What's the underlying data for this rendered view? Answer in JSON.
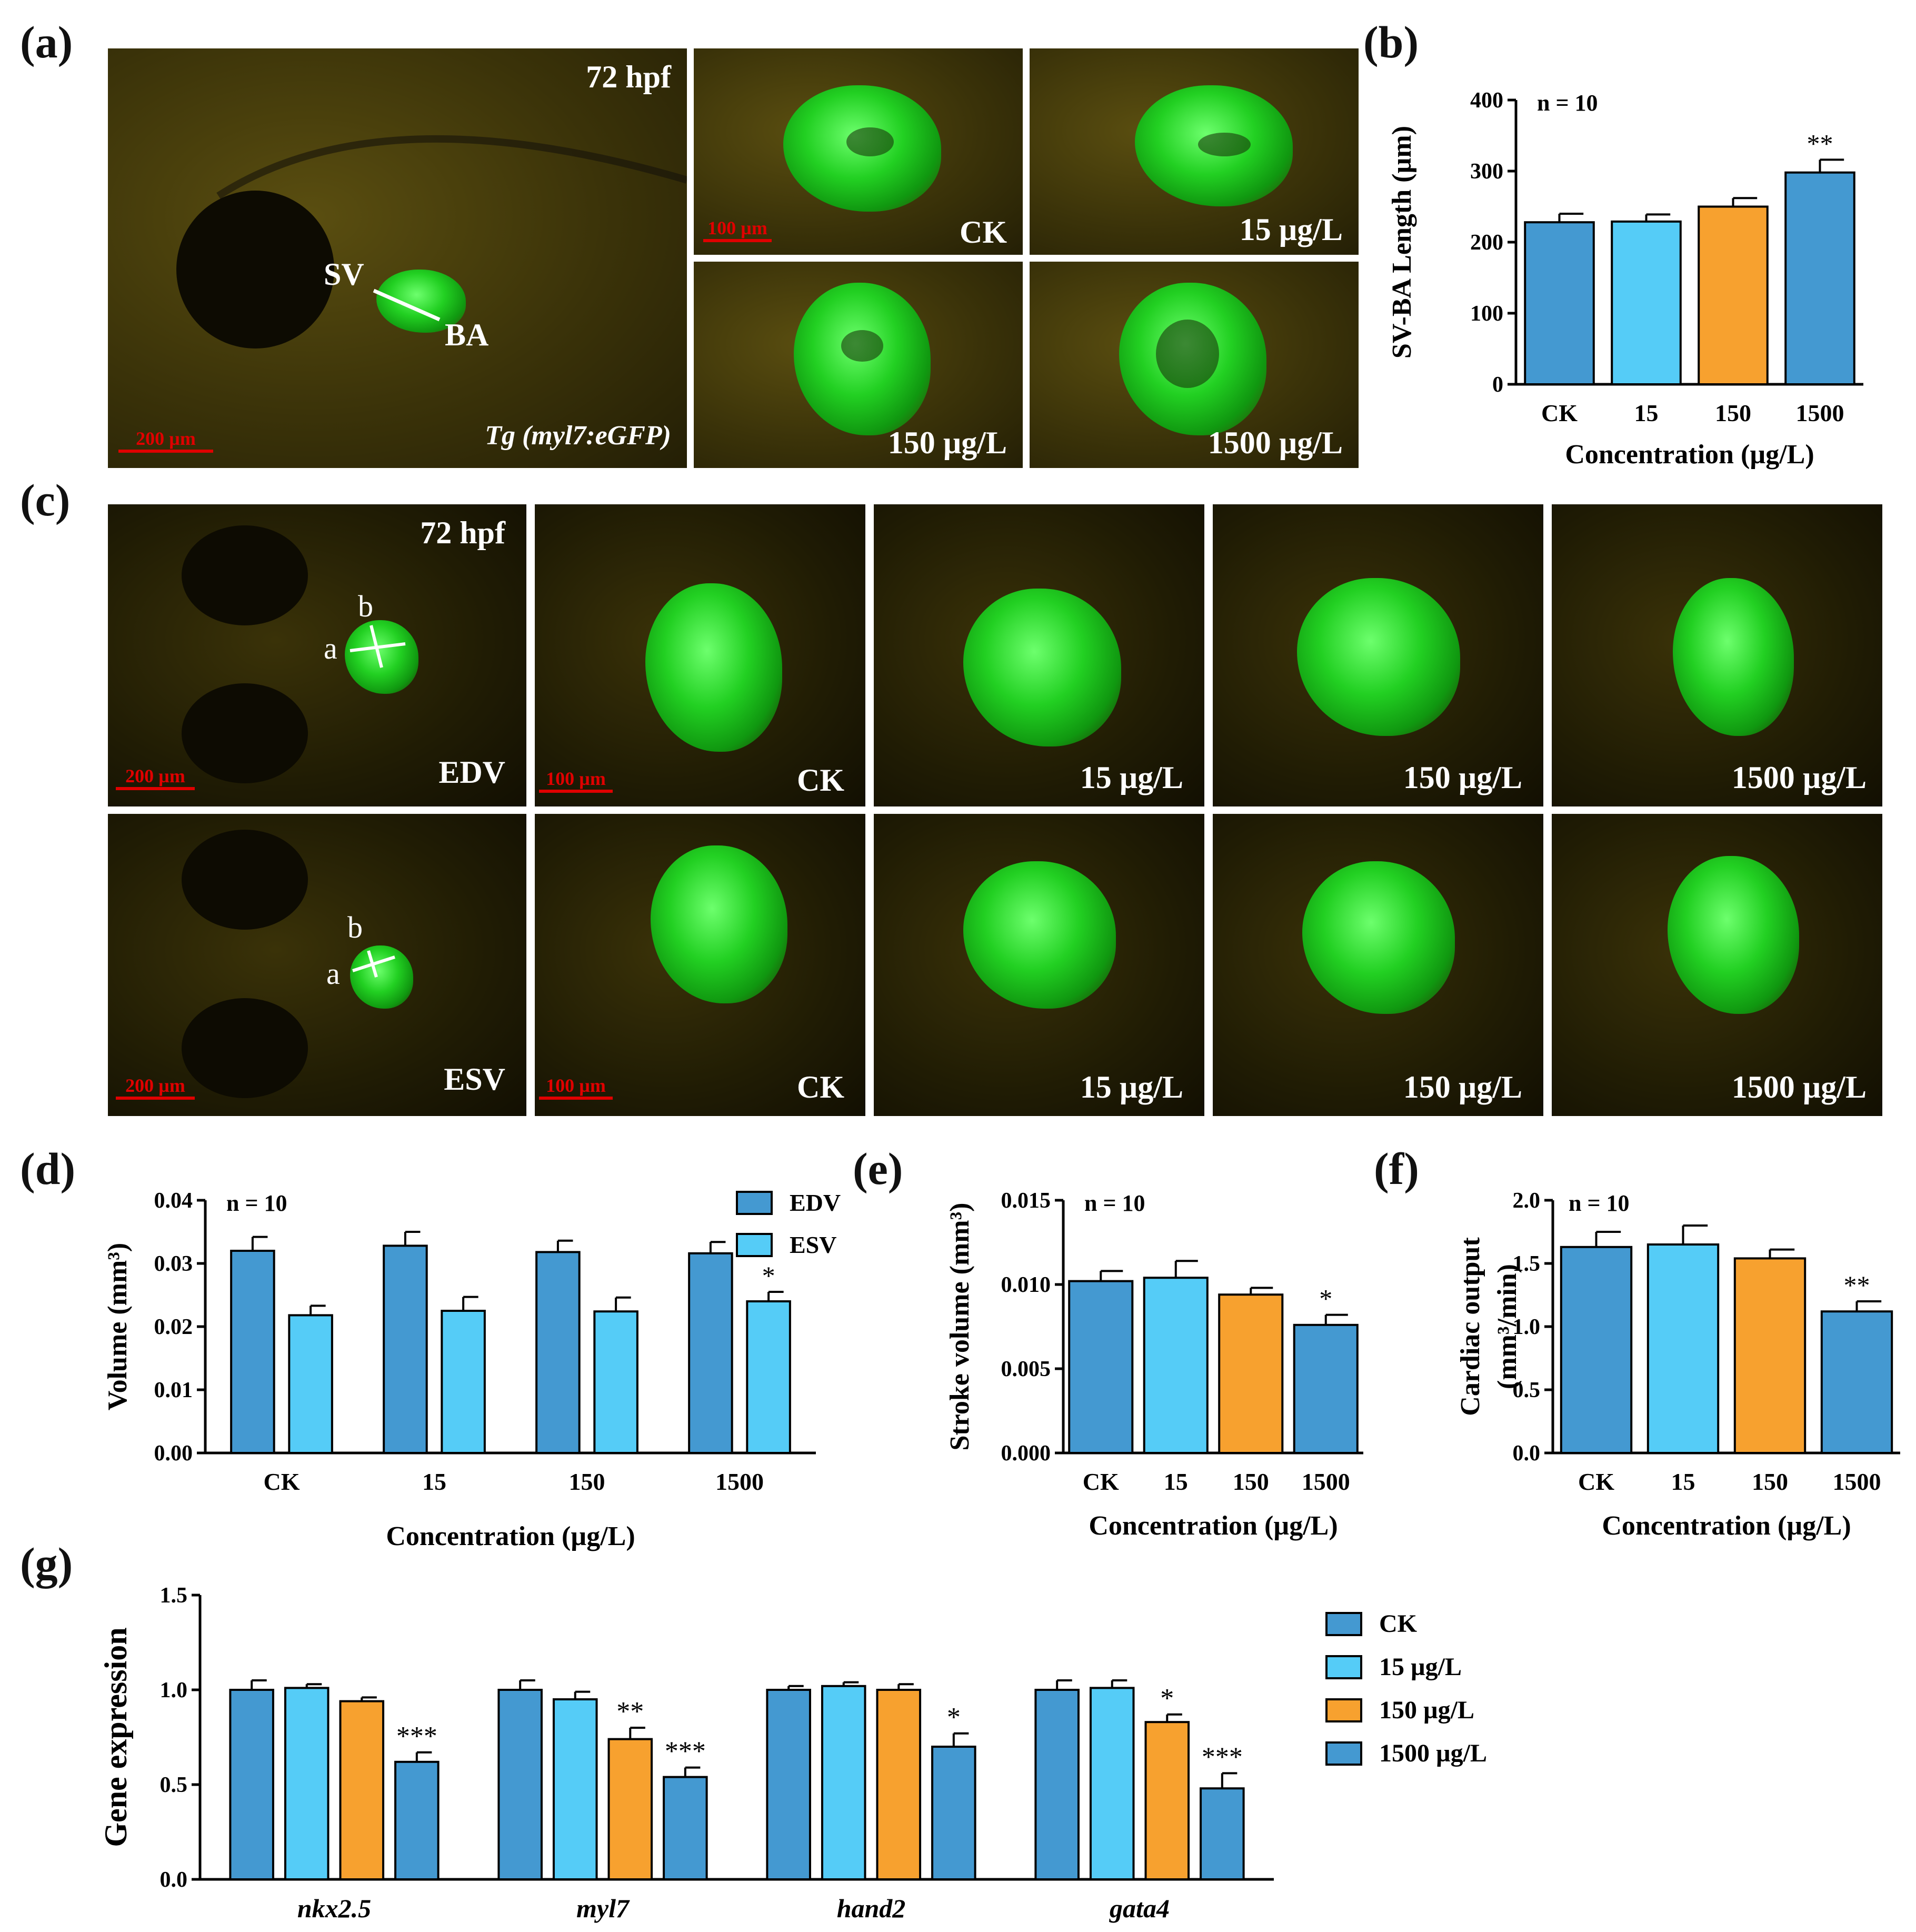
{
  "panel_labels": [
    "(a)",
    "(b)",
    "(c)",
    "(d)",
    "(e)",
    "(f)",
    "(g)"
  ],
  "micrographs": {
    "a": {
      "main_time": "72 hpf",
      "main_caption": "Tg (myl7:eGFP)",
      "sv_label": "SV",
      "ba_label": "BA",
      "main_scale": "200 µm",
      "thumb_scale": "100 µm",
      "thumb_labels": [
        "CK",
        "15 µg/L",
        "150 µg/L",
        "1500 µg/L"
      ]
    },
    "c": {
      "time": "72 hpf",
      "a_label": "a",
      "b_label": "b",
      "edv_label": "EDV",
      "esv_label": "ESV",
      "main_scale": "200 µm",
      "thumb_scale": "100 µm",
      "thumb_labels": [
        "CK",
        "15 µg/L",
        "150 µg/L",
        "1500 µg/L"
      ]
    }
  },
  "chart_data": [
    {
      "id": "b",
      "type": "bar",
      "ylabel": "SV-BA Length (µm)",
      "xlabel": "Concentration (µg/L)",
      "n_text": "n = 10",
      "categories": [
        "CK",
        "15",
        "150",
        "1500"
      ],
      "values": [
        228,
        229,
        250,
        298
      ],
      "errors": [
        12,
        10,
        12,
        18
      ],
      "significance": [
        "",
        "",
        "",
        "**"
      ],
      "ylim": [
        0,
        400
      ],
      "yticks": [
        0,
        100,
        200,
        300,
        400
      ],
      "ytick_labels": [
        "0",
        "100",
        "200",
        "300",
        "400"
      ],
      "colors": [
        "#4499d1",
        "#55ccf7",
        "#f7a12f",
        "#4499d1"
      ]
    },
    {
      "id": "d",
      "type": "bar",
      "ylabel": "Volume (mm³)",
      "xlabel": "Concentration (µg/L)",
      "n_text": "n = 10",
      "categories": [
        "CK",
        "15",
        "150",
        "1500"
      ],
      "series": [
        {
          "name": "EDV",
          "values": [
            0.032,
            0.0328,
            0.0318,
            0.0316
          ],
          "errors": [
            0.0022,
            0.0022,
            0.0018,
            0.0018
          ],
          "color": "#4499d1",
          "significance": [
            "",
            "",
            "",
            ""
          ]
        },
        {
          "name": "ESV",
          "values": [
            0.0218,
            0.0225,
            0.0224,
            0.024
          ],
          "errors": [
            0.0015,
            0.0022,
            0.0022,
            0.0015
          ],
          "color": "#55ccf7",
          "significance": [
            "",
            "",
            "",
            "*"
          ]
        }
      ],
      "ylim": [
        0,
        0.04
      ],
      "yticks": [
        0,
        0.01,
        0.02,
        0.03,
        0.04
      ],
      "ytick_labels": [
        "0.00",
        "0.01",
        "0.02",
        "0.03",
        "0.04"
      ],
      "legend": "top-right"
    },
    {
      "id": "e",
      "type": "bar",
      "ylabel": "Stroke volume (mm³)",
      "xlabel": "Concentration (µg/L)",
      "n_text": "n = 10",
      "categories": [
        "CK",
        "15",
        "150",
        "1500"
      ],
      "values": [
        0.0102,
        0.0104,
        0.0094,
        0.0076
      ],
      "errors": [
        0.0006,
        0.001,
        0.0004,
        0.0006
      ],
      "significance": [
        "",
        "",
        "",
        "*"
      ],
      "ylim": [
        0,
        0.015
      ],
      "yticks": [
        0,
        0.005,
        0.01,
        0.015
      ],
      "ytick_labels": [
        "0.000",
        "0.005",
        "0.010",
        "0.015"
      ],
      "colors": [
        "#4499d1",
        "#55ccf7",
        "#f7a12f",
        "#4499d1"
      ]
    },
    {
      "id": "f",
      "type": "bar",
      "ylabel": "Cardiac output",
      "ylabel2": "(mm³/min)",
      "xlabel": "Concentration (µg/L)",
      "n_text": "n = 10",
      "categories": [
        "CK",
        "15",
        "150",
        "1500"
      ],
      "values": [
        1.63,
        1.65,
        1.54,
        1.12
      ],
      "errors": [
        0.12,
        0.15,
        0.07,
        0.08
      ],
      "significance": [
        "",
        "",
        "",
        "**"
      ],
      "ylim": [
        0,
        2.0
      ],
      "yticks": [
        0,
        0.5,
        1.0,
        1.5,
        2.0
      ],
      "ytick_labels": [
        "0.0",
        "0.5",
        "1.0",
        "1.5",
        "2.0"
      ],
      "colors": [
        "#4499d1",
        "#55ccf7",
        "#f7a12f",
        "#4499d1"
      ]
    },
    {
      "id": "g",
      "type": "bar",
      "ylabel": "Gene expression",
      "categories": [
        "nkx2.5",
        "myl7",
        "hand2",
        "gata4"
      ],
      "series": [
        {
          "name": "CK",
          "values": [
            1.0,
            1.0,
            1.0,
            1.0
          ],
          "errors": [
            0.05,
            0.05,
            0.02,
            0.05
          ],
          "color": "#4499d1",
          "significance": [
            "",
            "",
            "",
            ""
          ]
        },
        {
          "name": "15 µg/L",
          "values": [
            1.01,
            0.95,
            1.02,
            1.01
          ],
          "errors": [
            0.02,
            0.04,
            0.02,
            0.04
          ],
          "color": "#55ccf7",
          "significance": [
            "",
            "",
            "",
            ""
          ]
        },
        {
          "name": "150 µg/L",
          "values": [
            0.94,
            0.74,
            1.0,
            0.83
          ],
          "errors": [
            0.02,
            0.06,
            0.03,
            0.04
          ],
          "color": "#f7a12f",
          "significance": [
            "",
            "**",
            "",
            "*"
          ]
        },
        {
          "name": "1500 µg/L",
          "values": [
            0.62,
            0.54,
            0.7,
            0.48
          ],
          "errors": [
            0.05,
            0.05,
            0.07,
            0.08
          ],
          "color": "#4499d1",
          "significance": [
            "***",
            "***",
            "*",
            "***"
          ]
        }
      ],
      "ylim": [
        0,
        1.5
      ],
      "yticks": [
        0,
        0.5,
        1.0,
        1.5
      ],
      "ytick_labels": [
        "0.0",
        "0.5",
        "1.0",
        "1.5"
      ],
      "legend": "right"
    }
  ]
}
